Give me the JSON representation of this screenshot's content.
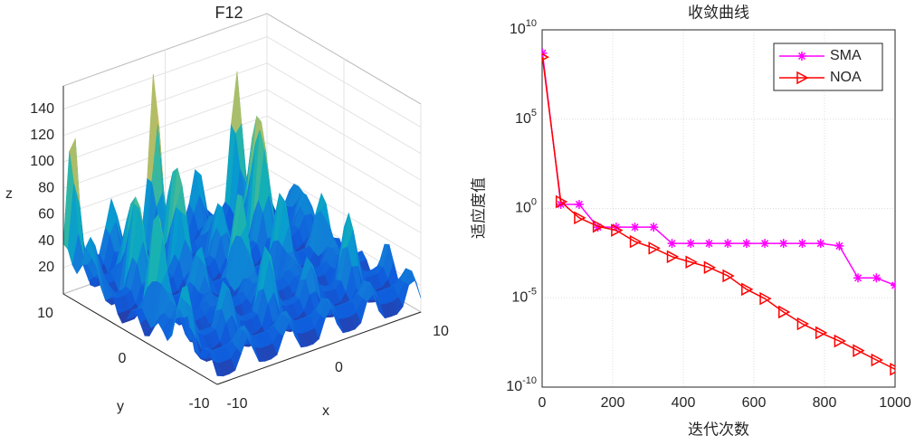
{
  "chart_data": [
    {
      "type": "surface",
      "title": "F12",
      "xlabel": "x",
      "ylabel": "y",
      "zlabel": "z",
      "xlim": [
        -10,
        10
      ],
      "xticks": [
        -10,
        0,
        10
      ],
      "ylim": [
        -10,
        10
      ],
      "yticks": [
        -10,
        0,
        10
      ],
      "zlim": [
        0,
        150
      ],
      "zticks": [
        20,
        40,
        60,
        80,
        100,
        120,
        140
      ]
    },
    {
      "type": "line",
      "title": "收敛曲线",
      "xlabel": "迭代次数",
      "ylabel": "适应度值",
      "x": [
        1,
        53,
        105,
        158,
        210,
        263,
        316,
        368,
        421,
        473,
        526,
        579,
        631,
        684,
        737,
        789,
        842,
        895,
        947,
        1000
      ],
      "series": [
        {
          "name": "SMA",
          "color": "#ff00ff",
          "marker": "asterisk",
          "values": [
            500000000.0,
            1.7,
            1.7,
            0.09,
            0.09,
            0.09,
            0.09,
            0.011,
            0.011,
            0.011,
            0.011,
            0.011,
            0.011,
            0.011,
            0.011,
            0.011,
            0.008,
            0.00013,
            0.00013,
            5e-05
          ]
        },
        {
          "name": "NOA",
          "color": "#ff0000",
          "marker": "triangle-right",
          "values": [
            300000000.0,
            2.4,
            0.3,
            0.1,
            0.06,
            0.014,
            0.006,
            0.002,
            0.001,
            0.0005,
            0.00017,
            3e-05,
            9e-06,
            1.6e-06,
            3.5e-07,
            1.1e-07,
            3.8e-08,
            1.1e-08,
            3.3e-09,
            1e-09
          ]
        }
      ],
      "xlim": [
        0,
        1000
      ],
      "xticks": [
        0,
        200,
        400,
        600,
        800,
        1000
      ],
      "yscale": "log",
      "ylim": [
        1e-10,
        10000000000.0
      ],
      "yticks": [
        {
          "value": 1e-10,
          "label": "10^-10"
        },
        {
          "value": 1e-05,
          "label": "10^-5"
        },
        {
          "value": 1,
          "label": "10^0"
        },
        {
          "value": 100000,
          "label": "10^5"
        },
        {
          "value": 10000000000,
          "label": "10^10"
        }
      ],
      "grid": true,
      "legend": "upper-right"
    }
  ]
}
